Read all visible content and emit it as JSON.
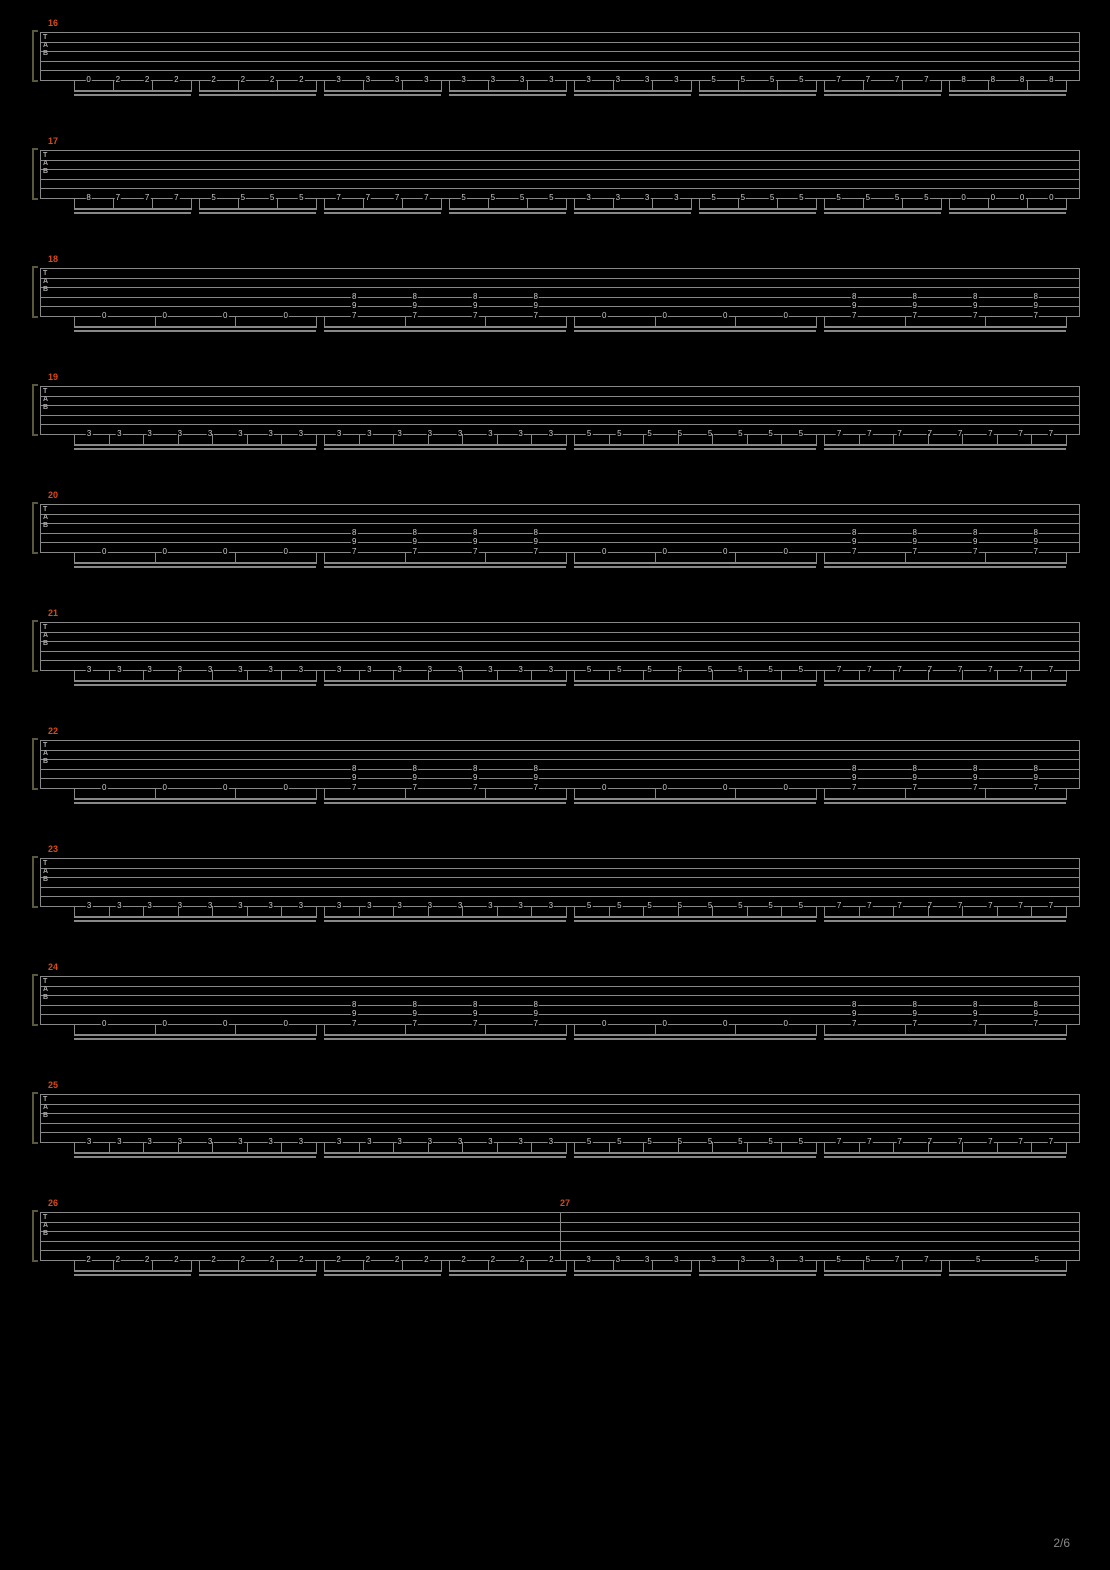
{
  "page_info": {
    "current": 2,
    "total": 6,
    "label": "2/6"
  },
  "colors": {
    "background": "#000000",
    "staff_line": "#888888",
    "measure_number": "#d94a1a",
    "fret_text": "#cccccc",
    "bracket": "#5a5a3a",
    "beam": "#888888"
  },
  "tab_strings": 6,
  "tab_label": "TAB",
  "staves": [
    {
      "measure_start": 16,
      "type": "single_string",
      "string_index": 5,
      "groups": [
        {
          "count": 4,
          "frets": [
            "0",
            "2",
            "2",
            "2"
          ]
        },
        {
          "count": 4,
          "frets": [
            "2",
            "2",
            "2",
            "2"
          ]
        },
        {
          "count": 4,
          "frets": [
            "3",
            "3",
            "3",
            "3"
          ]
        },
        {
          "count": 4,
          "frets": [
            "3",
            "3",
            "3",
            "3"
          ]
        },
        {
          "count": 4,
          "frets": [
            "3",
            "3",
            "3",
            "3"
          ]
        },
        {
          "count": 4,
          "frets": [
            "5",
            "5",
            "5",
            "5"
          ]
        },
        {
          "count": 4,
          "frets": [
            "7",
            "7",
            "7",
            "7"
          ]
        },
        {
          "count": 4,
          "frets": [
            "8",
            "8",
            "8",
            "8"
          ]
        }
      ]
    },
    {
      "measure_start": 17,
      "type": "single_string",
      "string_index": 5,
      "groups": [
        {
          "count": 4,
          "frets": [
            "8",
            "7",
            "7",
            "7"
          ]
        },
        {
          "count": 4,
          "frets": [
            "5",
            "5",
            "5",
            "5"
          ]
        },
        {
          "count": 4,
          "frets": [
            "7",
            "7",
            "7",
            "7"
          ]
        },
        {
          "count": 4,
          "frets": [
            "5",
            "5",
            "5",
            "5"
          ]
        },
        {
          "count": 4,
          "frets": [
            "3",
            "3",
            "3",
            "3"
          ]
        },
        {
          "count": 4,
          "frets": [
            "5",
            "5",
            "5",
            "5"
          ]
        },
        {
          "count": 4,
          "frets": [
            "5",
            "5",
            "5",
            "5"
          ]
        },
        {
          "count": 4,
          "frets": [
            "0",
            "0",
            "0",
            "0"
          ]
        }
      ]
    },
    {
      "measure_start": 18,
      "type": "chord_pattern",
      "groups": [
        {
          "count": 4,
          "pattern": "single",
          "string_index": 5,
          "frets": [
            "0",
            "0",
            "0",
            "0"
          ]
        },
        {
          "count": 4,
          "pattern": "chord",
          "chord": [
            {
              "s": 3,
              "f": "8"
            },
            {
              "s": 4,
              "f": "9"
            },
            {
              "s": 5,
              "f": "7"
            }
          ],
          "repeats": 4
        },
        {
          "count": 4,
          "pattern": "single",
          "string_index": 5,
          "frets": [
            "0",
            "0",
            "0",
            "0"
          ]
        },
        {
          "count": 4,
          "pattern": "chord",
          "chord": [
            {
              "s": 3,
              "f": "8"
            },
            {
              "s": 4,
              "f": "9"
            },
            {
              "s": 5,
              "f": "7"
            }
          ],
          "repeats": 4
        }
      ],
      "wide_groups": true
    },
    {
      "measure_start": 19,
      "type": "single_string",
      "string_index": 5,
      "groups": [
        {
          "count": 8,
          "frets": [
            "3",
            "3",
            "3",
            "3",
            "3",
            "3",
            "3",
            "3"
          ]
        },
        {
          "count": 8,
          "frets": [
            "3",
            "3",
            "3",
            "3",
            "3",
            "3",
            "3",
            "3"
          ]
        },
        {
          "count": 8,
          "frets": [
            "5",
            "5",
            "5",
            "5",
            "5",
            "5",
            "5",
            "5"
          ]
        },
        {
          "count": 8,
          "frets": [
            "7",
            "7",
            "7",
            "7",
            "7",
            "7",
            "7",
            "7"
          ]
        }
      ]
    },
    {
      "measure_start": 20,
      "type": "chord_pattern",
      "groups": [
        {
          "count": 4,
          "pattern": "single",
          "string_index": 5,
          "frets": [
            "0",
            "0",
            "0",
            "0"
          ]
        },
        {
          "count": 4,
          "pattern": "chord",
          "chord": [
            {
              "s": 3,
              "f": "8"
            },
            {
              "s": 4,
              "f": "9"
            },
            {
              "s": 5,
              "f": "7"
            }
          ],
          "repeats": 4
        },
        {
          "count": 4,
          "pattern": "single",
          "string_index": 5,
          "frets": [
            "0",
            "0",
            "0",
            "0"
          ]
        },
        {
          "count": 4,
          "pattern": "chord",
          "chord": [
            {
              "s": 3,
              "f": "8"
            },
            {
              "s": 4,
              "f": "9"
            },
            {
              "s": 5,
              "f": "7"
            }
          ],
          "repeats": 4
        }
      ],
      "wide_groups": true
    },
    {
      "measure_start": 21,
      "type": "single_string",
      "string_index": 5,
      "groups": [
        {
          "count": 8,
          "frets": [
            "3",
            "3",
            "3",
            "3",
            "3",
            "3",
            "3",
            "3"
          ]
        },
        {
          "count": 8,
          "frets": [
            "3",
            "3",
            "3",
            "3",
            "3",
            "3",
            "3",
            "3"
          ]
        },
        {
          "count": 8,
          "frets": [
            "5",
            "5",
            "5",
            "5",
            "5",
            "5",
            "5",
            "5"
          ]
        },
        {
          "count": 8,
          "frets": [
            "7",
            "7",
            "7",
            "7",
            "7",
            "7",
            "7",
            "7"
          ]
        }
      ]
    },
    {
      "measure_start": 22,
      "type": "chord_pattern",
      "groups": [
        {
          "count": 4,
          "pattern": "single",
          "string_index": 5,
          "frets": [
            "0",
            "0",
            "0",
            "0"
          ]
        },
        {
          "count": 4,
          "pattern": "chord",
          "chord": [
            {
              "s": 3,
              "f": "8"
            },
            {
              "s": 4,
              "f": "9"
            },
            {
              "s": 5,
              "f": "7"
            }
          ],
          "repeats": 4
        },
        {
          "count": 4,
          "pattern": "single",
          "string_index": 5,
          "frets": [
            "0",
            "0",
            "0",
            "0"
          ]
        },
        {
          "count": 4,
          "pattern": "chord",
          "chord": [
            {
              "s": 3,
              "f": "8"
            },
            {
              "s": 4,
              "f": "9"
            },
            {
              "s": 5,
              "f": "7"
            }
          ],
          "repeats": 4
        }
      ],
      "wide_groups": true
    },
    {
      "measure_start": 23,
      "type": "single_string",
      "string_index": 5,
      "groups": [
        {
          "count": 8,
          "frets": [
            "3",
            "3",
            "3",
            "3",
            "3",
            "3",
            "3",
            "3"
          ]
        },
        {
          "count": 8,
          "frets": [
            "3",
            "3",
            "3",
            "3",
            "3",
            "3",
            "3",
            "3"
          ]
        },
        {
          "count": 8,
          "frets": [
            "5",
            "5",
            "5",
            "5",
            "5",
            "5",
            "5",
            "5"
          ]
        },
        {
          "count": 8,
          "frets": [
            "7",
            "7",
            "7",
            "7",
            "7",
            "7",
            "7",
            "7"
          ]
        }
      ]
    },
    {
      "measure_start": 24,
      "type": "chord_pattern",
      "groups": [
        {
          "count": 4,
          "pattern": "single",
          "string_index": 5,
          "frets": [
            "0",
            "0",
            "0",
            "0"
          ]
        },
        {
          "count": 4,
          "pattern": "chord",
          "chord": [
            {
              "s": 3,
              "f": "8"
            },
            {
              "s": 4,
              "f": "9"
            },
            {
              "s": 5,
              "f": "7"
            }
          ],
          "repeats": 4
        },
        {
          "count": 4,
          "pattern": "single",
          "string_index": 5,
          "frets": [
            "0",
            "0",
            "0",
            "0"
          ]
        },
        {
          "count": 4,
          "pattern": "chord",
          "chord": [
            {
              "s": 3,
              "f": "8"
            },
            {
              "s": 4,
              "f": "9"
            },
            {
              "s": 5,
              "f": "7"
            }
          ],
          "repeats": 4
        }
      ],
      "wide_groups": true
    },
    {
      "measure_start": 25,
      "type": "single_string",
      "string_index": 5,
      "groups": [
        {
          "count": 8,
          "frets": [
            "3",
            "3",
            "3",
            "3",
            "3",
            "3",
            "3",
            "3"
          ]
        },
        {
          "count": 8,
          "frets": [
            "3",
            "3",
            "3",
            "3",
            "3",
            "3",
            "3",
            "3"
          ]
        },
        {
          "count": 8,
          "frets": [
            "5",
            "5",
            "5",
            "5",
            "5",
            "5",
            "5",
            "5"
          ]
        },
        {
          "count": 8,
          "frets": [
            "7",
            "7",
            "7",
            "7",
            "7",
            "7",
            "7",
            "7"
          ]
        }
      ]
    },
    {
      "measure_start": 26,
      "second_measure": 27,
      "type": "two_measure",
      "string_index": 5,
      "groups": [
        {
          "count": 4,
          "frets": [
            "2",
            "2",
            "2",
            "2"
          ]
        },
        {
          "count": 4,
          "frets": [
            "2",
            "2",
            "2",
            "2"
          ]
        },
        {
          "count": 4,
          "frets": [
            "2",
            "2",
            "2",
            "2"
          ]
        },
        {
          "count": 4,
          "frets": [
            "2",
            "2",
            "2",
            "2"
          ]
        },
        {
          "count": 4,
          "frets": [
            "3",
            "3",
            "3",
            "3"
          ]
        },
        {
          "count": 4,
          "frets": [
            "3",
            "3",
            "3",
            "3"
          ]
        },
        {
          "count": 4,
          "frets": [
            "5",
            "5",
            "7",
            "7"
          ]
        },
        {
          "count": 2,
          "frets": [
            "5",
            "5"
          ],
          "special": "tie"
        }
      ]
    }
  ]
}
